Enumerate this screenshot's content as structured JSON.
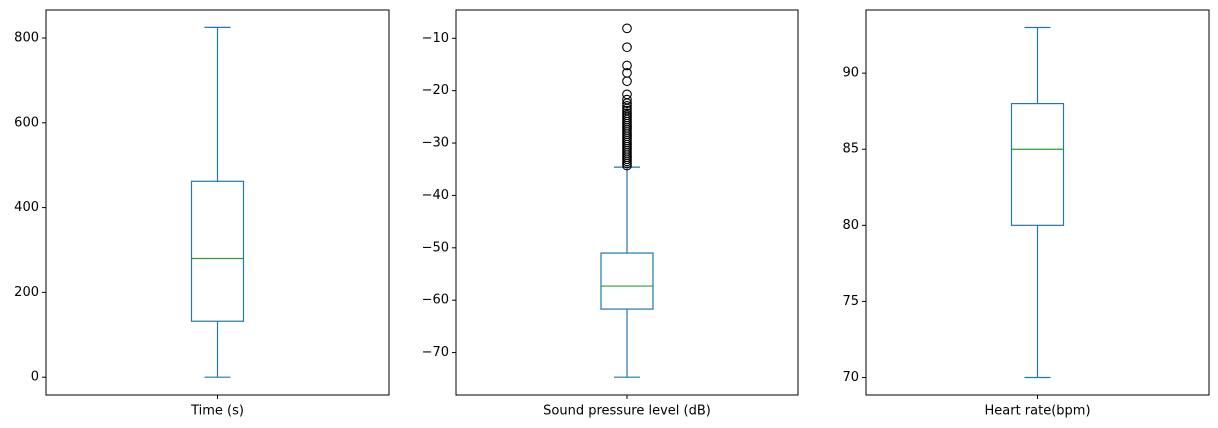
{
  "chart_data": [
    {
      "type": "box",
      "xlabel": "Time (s)",
      "ylim": [
        -42,
        866
      ],
      "yticks": [
        0,
        200,
        400,
        600,
        800
      ],
      "ytick_labels": [
        "0",
        "200",
        "400",
        "600",
        "800"
      ],
      "grid": false,
      "box": {
        "whisker_low": 0,
        "q1": 132,
        "median": 280,
        "q3": 462,
        "whisker_high": 825
      },
      "outliers": [],
      "colors": {
        "box": "#1f77b4",
        "median": "#2ca02c"
      }
    },
    {
      "type": "box",
      "xlabel": "Sound pressure level (dB)",
      "ylim": [
        -78.1,
        -4.6
      ],
      "yticks": [
        -70,
        -60,
        -50,
        -40,
        -30,
        -20,
        -10
      ],
      "ytick_labels": [
        "−70",
        "−60",
        "−50",
        "−40",
        "−30",
        "−20",
        "−10"
      ],
      "grid": false,
      "box": {
        "whisker_low": -74.7,
        "q1": -61.7,
        "median": -57.3,
        "q3": -51,
        "whisker_high": -34.6
      },
      "outliers": [
        -8.1,
        -11.7,
        -15.2,
        -16.6,
        -18.2,
        -20.7,
        -21.7,
        -22.4,
        -22.9,
        -23.4,
        -23.8,
        -24.3,
        -24.7,
        -25.1,
        -25.5,
        -25.9,
        -26.3,
        -26.7,
        -27.1,
        -27.5,
        -27.9,
        -28.3,
        -28.7,
        -29.1,
        -29.5,
        -29.9,
        -30.3,
        -30.7,
        -31.1,
        -31.5,
        -31.9,
        -32.3,
        -32.7,
        -33.1,
        -33.5,
        -33.9,
        -34.3
      ],
      "colors": {
        "box": "#1f77b4",
        "median": "#2ca02c"
      }
    },
    {
      "type": "box",
      "xlabel": "Heart rate(bpm)",
      "ylim": [
        68.85,
        94.15
      ],
      "yticks": [
        70,
        75,
        80,
        85,
        90
      ],
      "ytick_labels": [
        "70",
        "75",
        "80",
        "85",
        "90"
      ],
      "grid": false,
      "box": {
        "whisker_low": 70,
        "q1": 80,
        "median": 85,
        "q3": 88,
        "whisker_high": 93
      },
      "outliers": [],
      "colors": {
        "box": "#1f77b4",
        "median": "#2ca02c"
      }
    }
  ]
}
